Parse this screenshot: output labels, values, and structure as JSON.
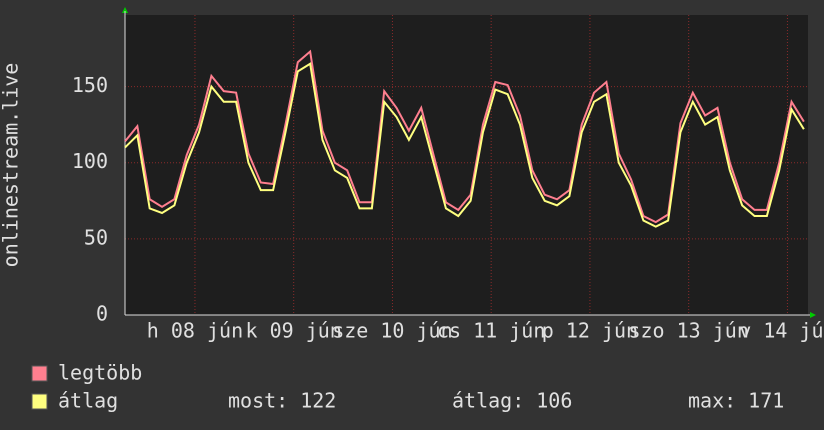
{
  "chart_data": {
    "type": "line",
    "y_label": "onlinestream.live",
    "x": [
      0,
      3,
      6,
      9,
      12,
      15,
      18,
      21,
      24,
      27,
      30,
      33,
      36,
      39,
      42,
      45,
      48,
      51,
      54,
      57,
      60,
      63,
      66,
      69,
      72,
      75,
      78,
      81,
      84,
      87,
      90,
      93,
      96,
      99,
      102,
      105,
      108,
      111,
      114,
      117,
      120,
      123,
      126,
      129,
      132,
      135,
      138,
      141,
      144,
      147,
      150,
      153,
      156,
      159,
      162,
      165
    ],
    "xlim": [
      0,
      166
    ],
    "xticks": [
      {
        "value": 17,
        "label": "h 08 jún"
      },
      {
        "value": 41,
        "label": "k 09 jún"
      },
      {
        "value": 65,
        "label": "sze 10 jún"
      },
      {
        "value": 89,
        "label": "cs 11 jún"
      },
      {
        "value": 113,
        "label": "p 12 jún"
      },
      {
        "value": 137,
        "label": "szo 13 jún"
      },
      {
        "value": 161,
        "label": "v 14 jún"
      }
    ],
    "ylim": [
      0,
      197
    ],
    "yticks": [
      0,
      50,
      100,
      150
    ],
    "grid": true,
    "series": [
      {
        "name": "legtöbb",
        "color": "#ff7f8f",
        "values": [
          114,
          124,
          76,
          71,
          76,
          105,
          125,
          157,
          147,
          146,
          106,
          87,
          86,
          125,
          166,
          173,
          121,
          100,
          95,
          74,
          74,
          147,
          136,
          121,
          136,
          105,
          74,
          69,
          79,
          125,
          153,
          151,
          131,
          95,
          79,
          76,
          82,
          125,
          146,
          153,
          106,
          89,
          65,
          61,
          66,
          126,
          146,
          131,
          136,
          100,
          76,
          69,
          69,
          100,
          140,
          127
        ]
      },
      {
        "name": "átlag",
        "color": "#ffff80",
        "values": [
          110,
          118,
          70,
          67,
          72,
          100,
          120,
          150,
          140,
          140,
          100,
          82,
          82,
          120,
          160,
          165,
          115,
          95,
          90,
          70,
          70,
          140,
          130,
          115,
          130,
          100,
          70,
          65,
          75,
          120,
          148,
          145,
          125,
          90,
          75,
          72,
          78,
          120,
          140,
          145,
          100,
          85,
          62,
          58,
          62,
          120,
          140,
          125,
          130,
          95,
          72,
          65,
          65,
          95,
          135,
          122
        ]
      }
    ],
    "stats": [
      {
        "label": "most:",
        "value": 122
      },
      {
        "label": "átlag:",
        "value": 106
      },
      {
        "label": "max:",
        "value": 171
      }
    ]
  }
}
